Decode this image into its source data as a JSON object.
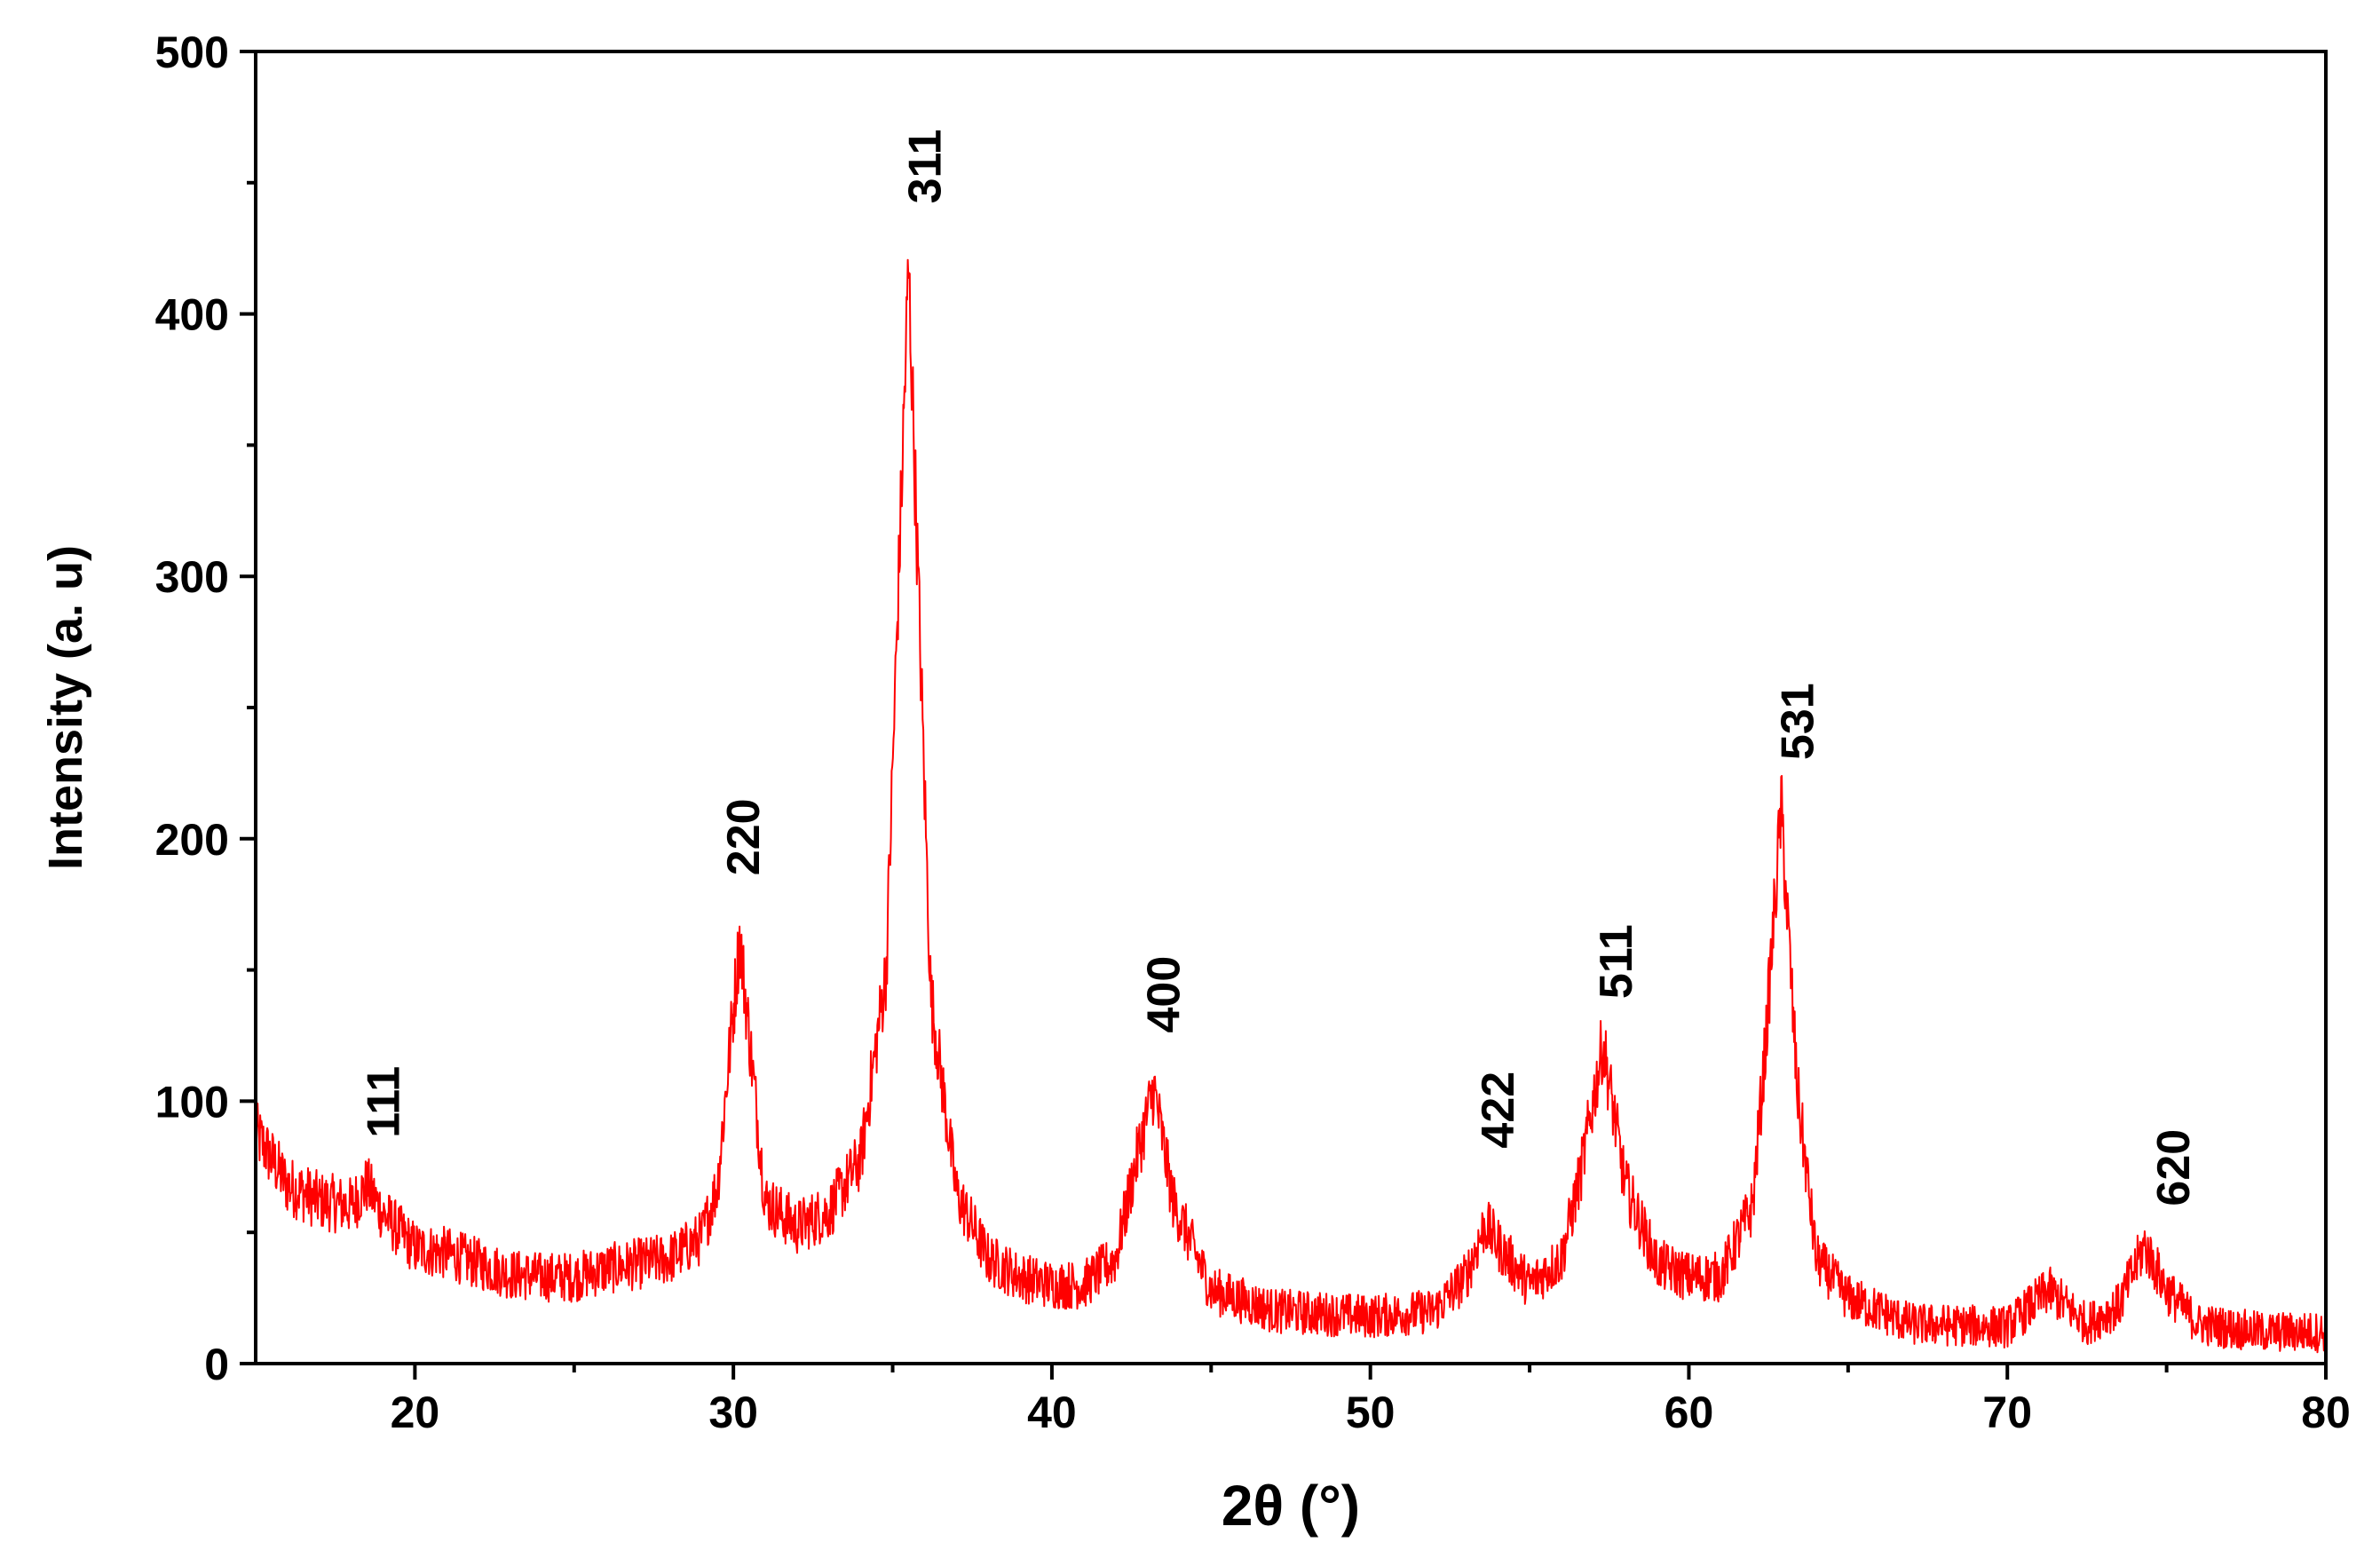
{
  "chart_data": {
    "type": "line",
    "title": "",
    "xlabel": "2θ (°)",
    "ylabel": "Intensity (a. u)",
    "xlim": [
      15,
      80
    ],
    "ylim": [
      0,
      500
    ],
    "x_ticks": [
      "20",
      "30",
      "40",
      "50",
      "60",
      "70",
      "80"
    ],
    "y_ticks": [
      "0",
      "100",
      "200",
      "300",
      "400",
      "500"
    ],
    "grid": false,
    "legend": "none",
    "series_color": "#ff0000",
    "series": [
      {
        "x": [
          15,
          16,
          17,
          18,
          18.5,
          19,
          20,
          21,
          22,
          23,
          24,
          25,
          26,
          27,
          28,
          29,
          29.5,
          30.2,
          31,
          32,
          33,
          34,
          34.8,
          35.5,
          36.2,
          37,
          38,
          39,
          40,
          41,
          42,
          42.7,
          43.2,
          43.8,
          45,
          47,
          50,
          52,
          53,
          53.6,
          54.2,
          55,
          56,
          56.6,
          57.3,
          58,
          59,
          60,
          61,
          62,
          62.4,
          62.9,
          63.4,
          64,
          65,
          67,
          70,
          71.3,
          72.5,
          73.5,
          74.3,
          75,
          76,
          78,
          80
        ],
        "y": [
          88,
          68,
          62,
          60,
          68,
          57,
          44,
          42,
          38,
          34,
          33,
          33,
          36,
          38,
          40,
          48,
          68,
          162,
          62,
          52,
          58,
          78,
          150,
          418,
          140,
          65,
          40,
          33,
          30,
          30,
          40,
          80,
          105,
          62,
          28,
          20,
          18,
          20,
          33,
          53,
          42,
          30,
          40,
          72,
          122,
          68,
          38,
          33,
          33,
          60,
          120,
          212,
          105,
          40,
          25,
          15,
          14,
          28,
          15,
          22,
          45,
          28,
          15,
          12,
          12
        ]
      }
    ],
    "annotations": [
      {
        "text": "111",
        "x": 19.0,
        "y": 86
      },
      {
        "text": "220",
        "x": 30.3,
        "y": 186
      },
      {
        "text": "311",
        "x": 36.0,
        "y": 442
      },
      {
        "text": "400",
        "x": 43.5,
        "y": 126
      },
      {
        "text": "422",
        "x": 54.0,
        "y": 82
      },
      {
        "text": "511",
        "x": 57.7,
        "y": 139
      },
      {
        "text": "531",
        "x": 63.4,
        "y": 230
      },
      {
        "text": "620",
        "x": 75.2,
        "y": 60
      }
    ]
  }
}
